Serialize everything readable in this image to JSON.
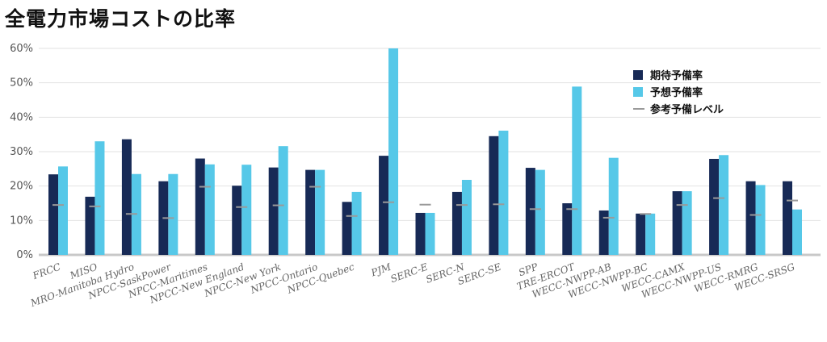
{
  "title": "全電力市場コストの比率",
  "chart_data": {
    "type": "bar",
    "title": "全電力市場コストの比率",
    "categories": [
      "FRCC",
      "MISO",
      "MRO-Manitoba Hydro",
      "NPCC-SaskPower",
      "NPCC-Maritimes",
      "NPCC-New England",
      "NPCC-New York",
      "NPCC-Ontario",
      "NPCC-Quebec",
      "PJM",
      "SERC-E",
      "SERC-N",
      "SERC-SE",
      "SPP",
      "TRE-ERCOT",
      "WECC-NWPP-AB",
      "WECC-NWPP-BC",
      "WECC-CAMX",
      "WECC-NWPP-US",
      "WECC-RMRG",
      "WECC-SRSG"
    ],
    "series": [
      {
        "name": "期待予備率",
        "color": "#172a56",
        "kind": "bar",
        "values": [
          23.4,
          16.9,
          33.6,
          21.4,
          28.0,
          20.1,
          25.4,
          24.7,
          15.4,
          28.8,
          12.2,
          18.3,
          34.5,
          25.3,
          15.0,
          12.9,
          12.0,
          18.5,
          27.9,
          21.4,
          21.4
        ]
      },
      {
        "name": "予想予備率",
        "color": "#56c8e8",
        "kind": "bar",
        "values": [
          25.7,
          33.0,
          23.5,
          23.5,
          26.3,
          26.2,
          31.6,
          24.7,
          18.3,
          60.0,
          12.2,
          21.8,
          36.1,
          24.7,
          48.9,
          28.2,
          12.0,
          18.5,
          29.0,
          20.3,
          13.2
        ]
      },
      {
        "name": "参考予備レベル",
        "color": "#9a9a9a",
        "kind": "marker",
        "values": [
          14.5,
          14.1,
          11.9,
          10.7,
          19.8,
          13.9,
          14.4,
          19.8,
          11.3,
          15.3,
          14.6,
          14.5,
          14.7,
          13.3,
          13.3,
          10.8,
          11.9,
          14.5,
          16.5,
          11.6,
          15.8
        ]
      }
    ],
    "yticks": [
      "0%",
      "10%",
      "20%",
      "30%",
      "40%",
      "50%",
      "60%"
    ],
    "ylim": [
      0,
      60
    ],
    "grid": true,
    "legend_position": "top-right"
  }
}
